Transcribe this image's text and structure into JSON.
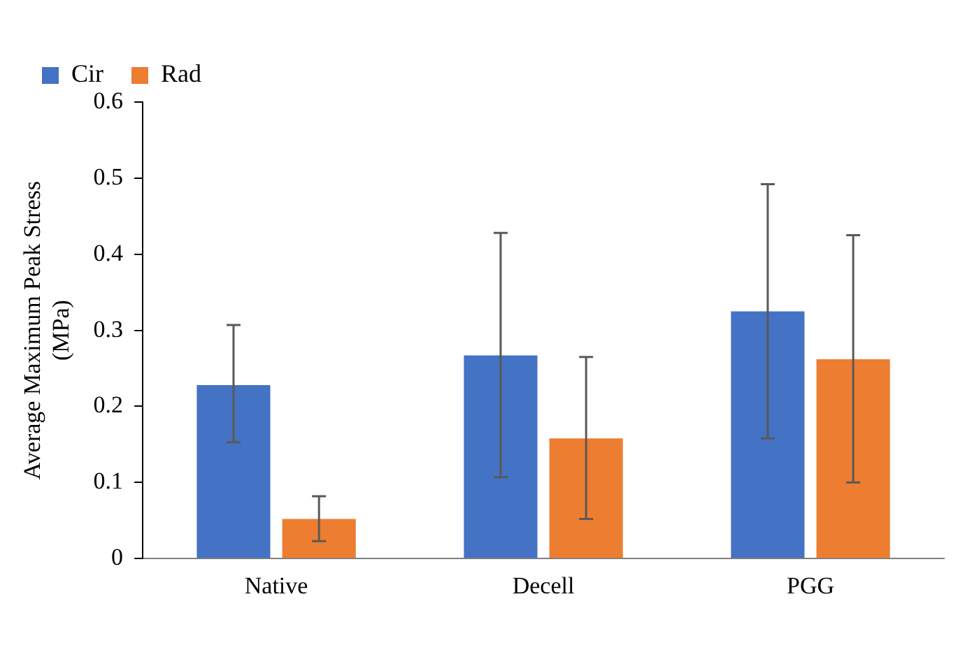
{
  "chart_data": {
    "type": "bar",
    "ylabel": "Average Maximum Peak Stress (MPa)",
    "categories": [
      "Native",
      "Decell",
      "PGG"
    ],
    "series": [
      {
        "name": "Cir",
        "color": "#4472c4",
        "values": [
          0.228,
          0.267,
          0.325
        ],
        "errors": [
          [
            0.153,
            0.307
          ],
          [
            0.107,
            0.428
          ],
          [
            0.158,
            0.492
          ]
        ]
      },
      {
        "name": "Rad",
        "color": "#ed7d31",
        "values": [
          0.052,
          0.158,
          0.262
        ],
        "errors": [
          [
            0.023,
            0.082
          ],
          [
            0.052,
            0.265
          ],
          [
            0.1,
            0.425
          ]
        ]
      }
    ],
    "ylim": [
      0,
      0.6
    ],
    "yticks": [
      0,
      0.1,
      0.2,
      0.3,
      0.4,
      0.5,
      0.6
    ],
    "grid": false,
    "legend": "top left"
  }
}
